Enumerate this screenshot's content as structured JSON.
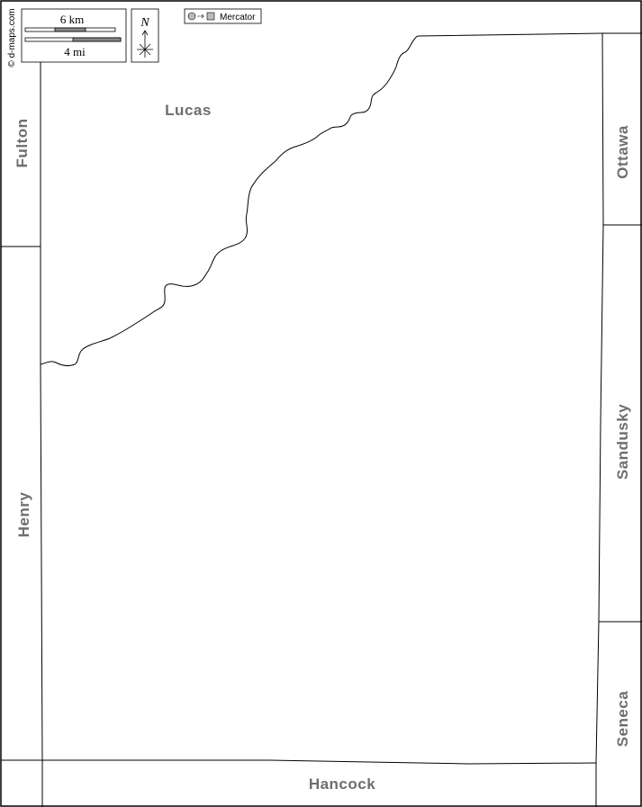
{
  "credit": "© d-maps.com",
  "scale": {
    "km_label": "6 km",
    "mi_label": "4 mi"
  },
  "north": {
    "letter": "N"
  },
  "projection": {
    "name": "Mercator"
  },
  "counties": {
    "main": "Lucas",
    "fulton": "Fulton",
    "henry": "Henry",
    "ottawa": "Ottawa",
    "sandusky": "Sandusky",
    "seneca": "Seneca",
    "hancock": "Hancock"
  },
  "colors": {
    "label": "#6e6e6e",
    "line": "#000000",
    "background": "#ffffff"
  }
}
